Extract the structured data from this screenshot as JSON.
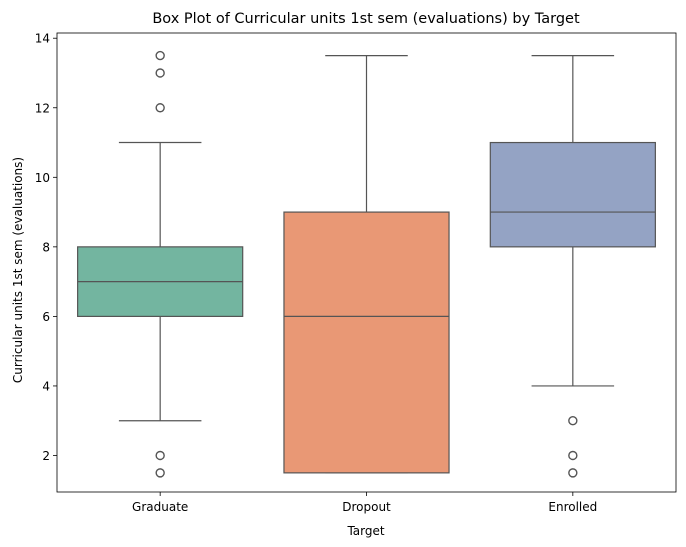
{
  "chart_data": {
    "type": "box",
    "title": "Box Plot of Curricular units 1st sem (evaluations) by Target",
    "xlabel": "Target",
    "ylabel": "Curricular units 1st sem (evaluations)",
    "ylim": [
      0.95,
      14.15
    ],
    "yticks": [
      2,
      4,
      6,
      8,
      10,
      12,
      14
    ],
    "categories": [
      "Graduate",
      "Dropout",
      "Enrolled"
    ],
    "grid": false,
    "boxes": [
      {
        "category": "Graduate",
        "whisker_low": 3,
        "q1": 6,
        "median": 7,
        "q3": 8,
        "whisker_high": 11,
        "outliers": [
          1.5,
          2,
          12,
          13,
          13.5
        ],
        "color": "#73b5a0"
      },
      {
        "category": "Dropout",
        "whisker_low": 1.5,
        "q1": 1.5,
        "median": 6,
        "q3": 9,
        "whisker_high": 13.5,
        "outliers": [],
        "color": "#e99875"
      },
      {
        "category": "Enrolled",
        "whisker_low": 4,
        "q1": 8,
        "median": 9,
        "q3": 11,
        "whisker_high": 13.5,
        "outliers": [
          1.5,
          2,
          3
        ],
        "color": "#94a3c4"
      }
    ]
  }
}
